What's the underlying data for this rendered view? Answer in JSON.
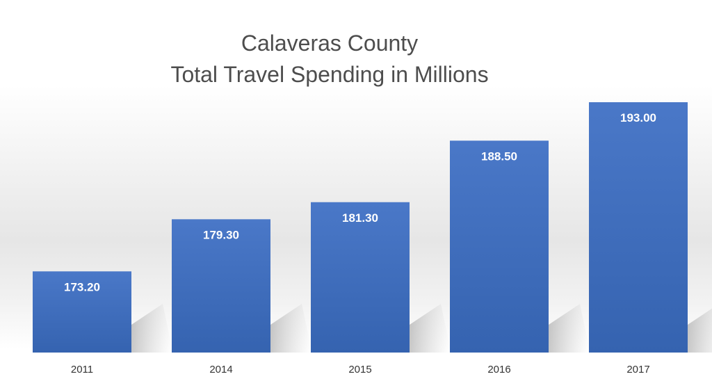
{
  "chart_data": {
    "type": "bar",
    "title_lines": [
      "Calaveras County",
      "Total Travel Spending in Millions"
    ],
    "categories": [
      "2011",
      "2014",
      "2015",
      "2016",
      "2017"
    ],
    "values": [
      173.2,
      179.3,
      181.3,
      188.5,
      193.0
    ],
    "value_labels": [
      "173.20",
      "179.30",
      "181.30",
      "188.50",
      "193.00"
    ],
    "xlabel": "",
    "ylabel": "",
    "ylim": [
      150,
      200
    ],
    "grid": false,
    "legend": "none",
    "bar_color": "#4472c4",
    "bar_color_dark": "#2f5597",
    "label_color": "#ffffff"
  }
}
